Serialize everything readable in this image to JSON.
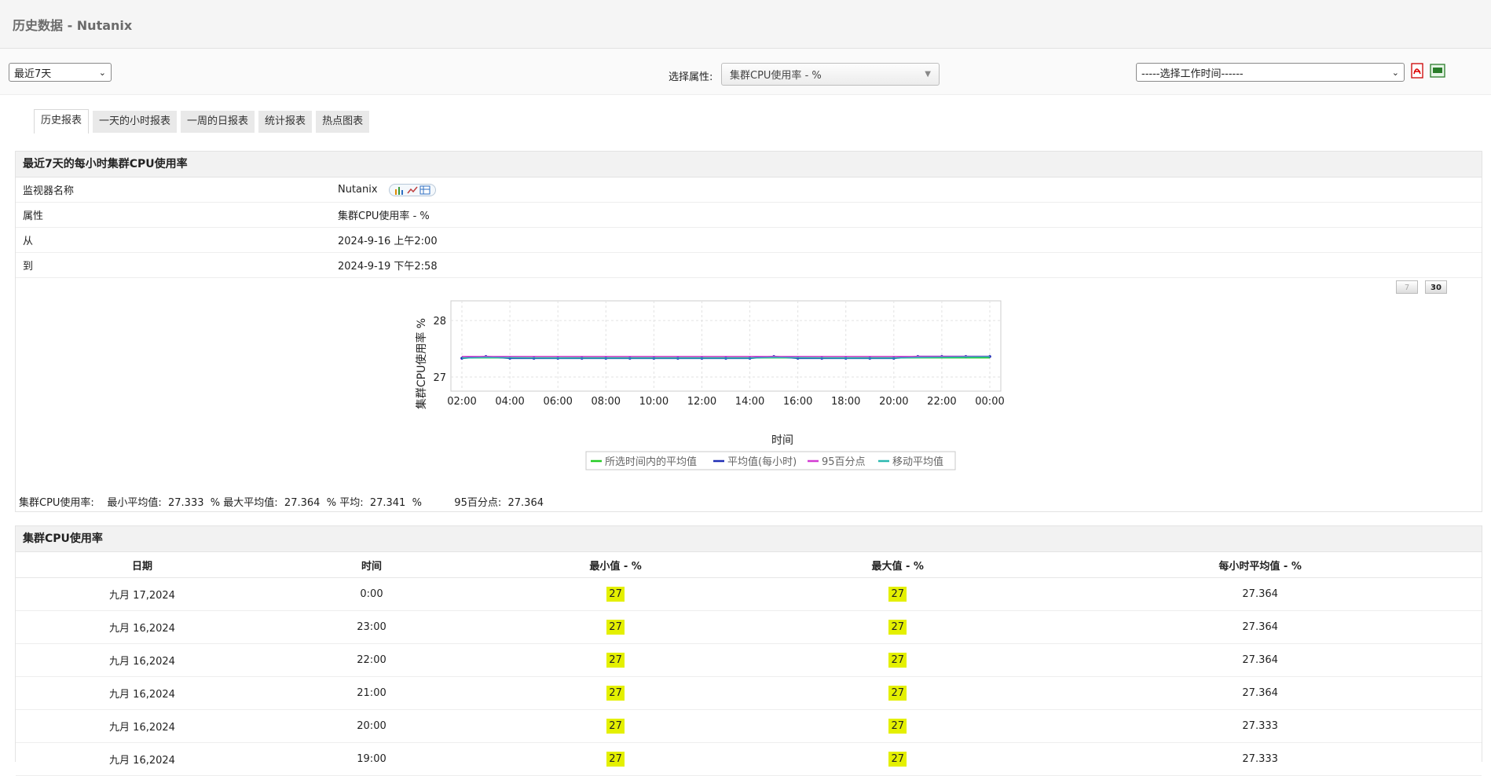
{
  "title": "历史数据 - Nutanix",
  "toolbar": {
    "period_value": "最近7天",
    "attr_label": "选择属性:",
    "attr_value": "集群CPU使用率 - %",
    "worktime_value": "-----选择工作时间------",
    "icons": [
      "pdf-icon",
      "csv-icon"
    ]
  },
  "tabs": [
    "历史报表",
    "一天的小时报表",
    "一周的日报表",
    "统计报表",
    "热点图表"
  ],
  "summary": {
    "heading": "最近7天的每小时集群CPU使用率",
    "rows": [
      {
        "label": "监视器名称",
        "value": "Nutanix"
      },
      {
        "label": "属性",
        "value": "集群CPU使用率 - %"
      },
      {
        "label": "从",
        "value": "2024-9-16 上午2:00"
      },
      {
        "label": "到",
        "value": "2024-9-19 下午2:58"
      }
    ],
    "zoom": {
      "btn7": "7",
      "btn30": "30"
    },
    "stats": {
      "prefix": "集群CPU使用率:",
      "min_label": "最小平均值:",
      "min_value": "27.333",
      "unit": "%",
      "max_label": "最大平均值:",
      "max_value": "27.364",
      "avg_label": "平均:",
      "avg_value": "27.341",
      "p95_label": "95百分点:",
      "p95_value": "27.364"
    }
  },
  "chart_data": {
    "type": "line",
    "xlabel": "时间",
    "ylabel": "集群CPU使用率 %",
    "x_ticks": [
      "02:00",
      "04:00",
      "06:00",
      "08:00",
      "10:00",
      "12:00",
      "14:00",
      "16:00",
      "18:00",
      "20:00",
      "22:00",
      "00:00"
    ],
    "y_ticks": [
      27,
      28
    ],
    "ylim": [
      26.75,
      28.35
    ],
    "grid": true,
    "legend_position": "bottom",
    "series": [
      {
        "name": "所选时间内的平均值",
        "color": "#22cc22",
        "values": [
          27.341,
          27.341,
          27.341,
          27.341,
          27.341,
          27.341,
          27.341,
          27.341,
          27.341,
          27.341,
          27.341,
          27.341,
          27.341,
          27.341,
          27.341,
          27.341,
          27.341,
          27.341,
          27.341,
          27.341,
          27.341,
          27.341,
          27.341
        ]
      },
      {
        "name": "平均值(每小时)",
        "color": "#1f2db5",
        "values": [
          27.333,
          27.364,
          27.333,
          27.333,
          27.333,
          27.333,
          27.333,
          27.333,
          27.333,
          27.333,
          27.333,
          27.333,
          27.333,
          27.364,
          27.333,
          27.333,
          27.333,
          27.333,
          27.333,
          27.364,
          27.364,
          27.364,
          27.364
        ]
      },
      {
        "name": "95百分点",
        "color": "#d23ad2",
        "values": [
          27.364,
          27.364,
          27.364,
          27.364,
          27.364,
          27.364,
          27.364,
          27.364,
          27.364,
          27.364,
          27.364,
          27.364,
          27.364,
          27.364,
          27.364,
          27.364,
          27.364,
          27.364,
          27.364,
          27.364,
          27.364,
          27.364,
          27.364
        ]
      },
      {
        "name": "移动平均值",
        "color": "#2ab8b0",
        "values": [
          27.335,
          27.345,
          27.34,
          27.338,
          27.337,
          27.336,
          27.336,
          27.336,
          27.336,
          27.336,
          27.336,
          27.336,
          27.336,
          27.345,
          27.34,
          27.338,
          27.337,
          27.336,
          27.336,
          27.345,
          27.35,
          27.355,
          27.358
        ]
      }
    ]
  },
  "table": {
    "heading": "集群CPU使用率",
    "columns": [
      "日期",
      "时间",
      "最小值 - %",
      "最大值 - %",
      "每小时平均值 - %"
    ],
    "rows": [
      [
        "九月 17,2024",
        "0:00",
        "27",
        "27",
        "27.364"
      ],
      [
        "九月 16,2024",
        "23:00",
        "27",
        "27",
        "27.364"
      ],
      [
        "九月 16,2024",
        "22:00",
        "27",
        "27",
        "27.364"
      ],
      [
        "九月 16,2024",
        "21:00",
        "27",
        "27",
        "27.364"
      ],
      [
        "九月 16,2024",
        "20:00",
        "27",
        "27",
        "27.333"
      ],
      [
        "九月 16,2024",
        "19:00",
        "27",
        "27",
        "27.333"
      ]
    ]
  }
}
